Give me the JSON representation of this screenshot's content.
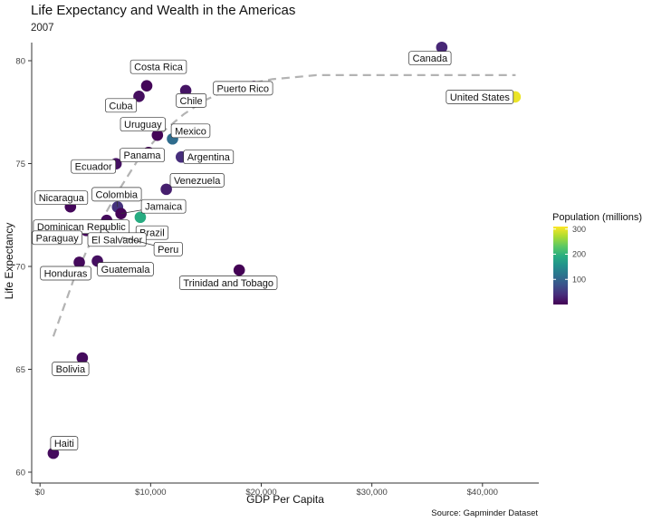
{
  "chart_data": {
    "type": "scatter",
    "title": "Life Expectancy and Wealth in the Americas",
    "subtitle": "2007",
    "xlabel": "GDP Per Capita",
    "ylabel": "Life Expectancy",
    "caption": "Source: Gapminder Dataset",
    "xlim": [
      -500,
      45500
    ],
    "ylim": [
      59.8,
      82.2
    ],
    "xticks": [
      0,
      10000,
      20000,
      30000,
      40000
    ],
    "xtick_labels": [
      "$0",
      "$10,000",
      "$20,000",
      "$30,000",
      "$40,000"
    ],
    "yticks": [
      60,
      65,
      70,
      75,
      80
    ],
    "ytick_labels": [
      "60",
      "65",
      "70",
      "75",
      "80"
    ],
    "grid": false,
    "legend": {
      "title": "Population (millions)",
      "placement": "right",
      "min": 0,
      "max": 310,
      "ticks": [
        100,
        200,
        300
      ],
      "tick_labels": [
        "100",
        "200",
        "300"
      ]
    },
    "trend": {
      "style": "dashed",
      "color": "#b3b3b3",
      "x": [
        1200,
        3000,
        5000,
        7000,
        9000,
        11000,
        13000,
        15000,
        17000,
        19000,
        21000,
        23000,
        25000,
        27000,
        29000,
        31000,
        33000,
        35000,
        37000,
        39000,
        41000,
        43000
      ],
      "y": [
        66.6,
        69.3,
        71.7,
        73.6,
        75.3,
        76.5,
        77.4,
        78.1,
        78.6,
        78.9,
        79.1,
        79.2,
        79.3,
        79.3,
        79.3,
        79.3,
        79.3,
        79.3,
        79.3,
        79.3,
        79.3,
        79.3
      ]
    },
    "points": [
      {
        "country": "Canada",
        "gdp": 36319,
        "lifeExp": 80.65,
        "pop": 33.4
      },
      {
        "country": "United States",
        "gdp": 42952,
        "lifeExp": 78.24,
        "pop": 301.1
      },
      {
        "country": "Costa Rica",
        "gdp": 9645,
        "lifeExp": 78.78,
        "pop": 4.1
      },
      {
        "country": "Chile",
        "gdp": 13172,
        "lifeExp": 78.55,
        "pop": 16.3
      },
      {
        "country": "Puerto Rico",
        "gdp": 19329,
        "lifeExp": 78.75,
        "pop": 3.9
      },
      {
        "country": "Cuba",
        "gdp": 8948,
        "lifeExp": 78.27,
        "pop": 11.4
      },
      {
        "country": "Uruguay",
        "gdp": 10611,
        "lifeExp": 76.38,
        "pop": 3.4
      },
      {
        "country": "Mexico",
        "gdp": 11978,
        "lifeExp": 76.2,
        "pop": 108.7
      },
      {
        "country": "Panama",
        "gdp": 9809,
        "lifeExp": 75.54,
        "pop": 3.2
      },
      {
        "country": "Argentina",
        "gdp": 12779,
        "lifeExp": 75.32,
        "pop": 40.3
      },
      {
        "country": "Ecuador",
        "gdp": 6873,
        "lifeExp": 74.99,
        "pop": 13.8
      },
      {
        "country": "Venezuela",
        "gdp": 11416,
        "lifeExp": 73.75,
        "pop": 26.1
      },
      {
        "country": "Colombia",
        "gdp": 7007,
        "lifeExp": 72.89,
        "pop": 44.2
      },
      {
        "country": "Nicaragua",
        "gdp": 2749,
        "lifeExp": 72.9,
        "pop": 5.7
      },
      {
        "country": "Jamaica",
        "gdp": 7321,
        "lifeExp": 72.57,
        "pop": 2.8
      },
      {
        "country": "Brazil",
        "gdp": 9066,
        "lifeExp": 72.39,
        "pop": 190.0
      },
      {
        "country": "Dominican Republic",
        "gdp": 6025,
        "lifeExp": 72.24,
        "pop": 9.3
      },
      {
        "country": "Paraguay",
        "gdp": 4173,
        "lifeExp": 71.75,
        "pop": 6.7
      },
      {
        "country": "El Salvador",
        "gdp": 5728,
        "lifeExp": 71.88,
        "pop": 6.9
      },
      {
        "country": "Peru",
        "gdp": 7409,
        "lifeExp": 71.42,
        "pop": 28.7
      },
      {
        "country": "Honduras",
        "gdp": 3548,
        "lifeExp": 70.2,
        "pop": 7.5
      },
      {
        "country": "Guatemala",
        "gdp": 5186,
        "lifeExp": 70.26,
        "pop": 12.6
      },
      {
        "country": "Trinidad and Tobago",
        "gdp": 18009,
        "lifeExp": 69.82,
        "pop": 1.1
      },
      {
        "country": "Bolivia",
        "gdp": 3822,
        "lifeExp": 65.55,
        "pop": 9.1
      },
      {
        "country": "Haiti",
        "gdp": 1202,
        "lifeExp": 60.92,
        "pop": 8.5
      }
    ]
  }
}
